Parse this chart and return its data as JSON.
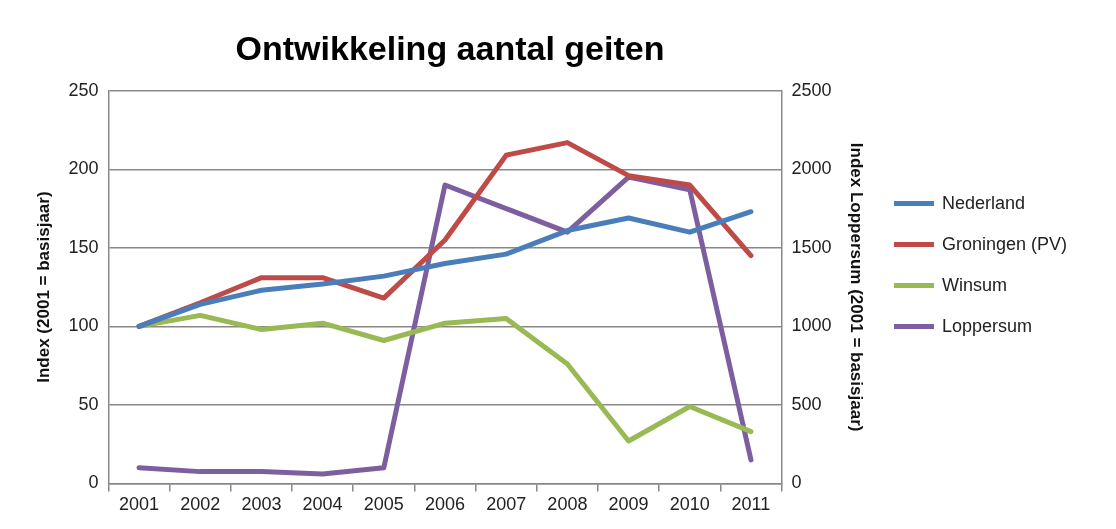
{
  "chart_data": {
    "type": "line",
    "title": "Ontwikkeling aantal geiten",
    "ylabel": "Index (2001 = basisjaar)",
    "y2label": "Index Loppersum (2001 = basisjaar)",
    "categories": [
      "2001",
      "2002",
      "2003",
      "2004",
      "2005",
      "2006",
      "2007",
      "2008",
      "2009",
      "2010",
      "2011"
    ],
    "series": [
      {
        "name": "Nederland",
        "color": "#4a7ebb",
        "values": [
          100,
          114,
          123,
          127,
          132,
          140,
          146,
          161,
          169,
          160,
          173
        ]
      },
      {
        "name": "Groningen (PV)",
        "color": "#be4b48",
        "values": [
          100,
          115,
          131,
          131,
          118,
          155,
          209,
          217,
          196,
          190,
          145
        ]
      },
      {
        "name": "Winsum",
        "color": "#98b954",
        "values": [
          100,
          107,
          98,
          102,
          91,
          102,
          105,
          76,
          27,
          49,
          33
        ]
      },
      {
        "name": "Loppersum",
        "color": "#7d5fa0",
        "axis": "y2",
        "values": [
          100,
          75,
          75,
          60,
          100,
          1900,
          1750,
          1600,
          1950,
          1870,
          150
        ]
      }
    ],
    "ylim": [
      0,
      250
    ],
    "yticks": [
      0,
      50,
      100,
      150,
      200,
      250
    ],
    "y2lim": [
      0,
      2500
    ],
    "y2ticks": [
      0,
      500,
      1000,
      1500,
      2000,
      2500
    ],
    "grid": "y",
    "legend": "right",
    "marker": "none",
    "line_style": "solid"
  }
}
